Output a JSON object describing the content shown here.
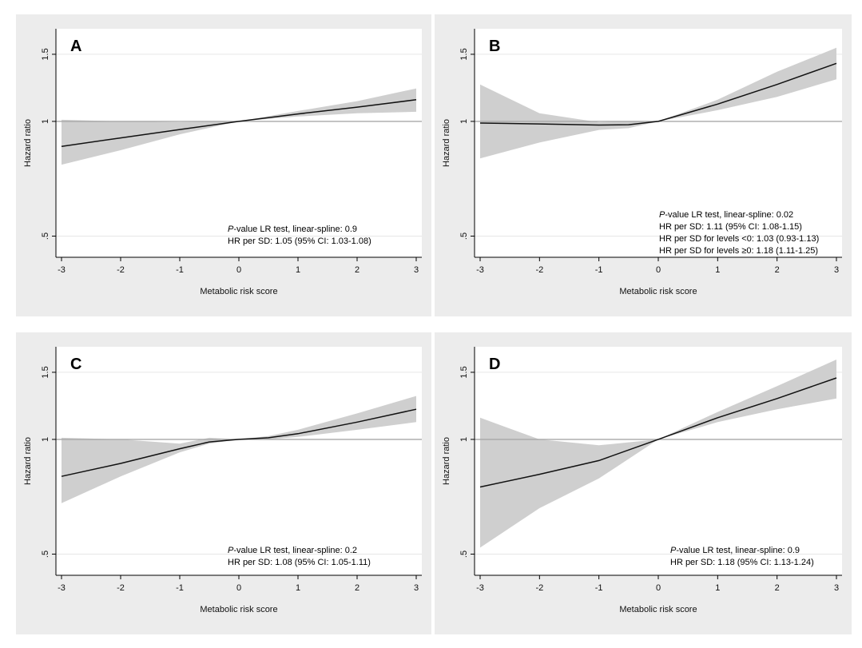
{
  "chart_data": [
    {
      "type": "line",
      "panel_label": "A",
      "xlabel": "Metabolic risk score",
      "ylabel": "Hazard ratio",
      "xlim": [
        -3,
        3
      ],
      "ylim_log": [
        0.44,
        1.75
      ],
      "x_ticks": [
        "-3",
        "-2",
        "-1",
        "0",
        "1",
        "2",
        "3"
      ],
      "y_ticks": [
        {
          "value": 0.5,
          "label": ".5"
        },
        {
          "value": 1,
          "label": "1"
        },
        {
          "value": 1.5,
          "label": "1.5"
        }
      ],
      "reference_line": 1,
      "grid": true,
      "x": [
        -3,
        -2,
        -1,
        0,
        1,
        2,
        3
      ],
      "hr": [
        0.86,
        0.905,
        0.952,
        1.0,
        1.046,
        1.09,
        1.14
      ],
      "ci_low": [
        0.77,
        0.84,
        0.925,
        1.0,
        1.03,
        1.05,
        1.06
      ],
      "ci_high": [
        1.01,
        1.0,
        0.995,
        1.0,
        1.065,
        1.13,
        1.22
      ],
      "annotations": [
        {
          "italic": "P",
          "text": "-value  LR test, linear-spline:  0.9"
        },
        {
          "italic": "",
          "text": "HR per SD: 1.05 (95% CI: 1.03-1.08)"
        }
      ]
    },
    {
      "type": "line",
      "panel_label": "B",
      "xlabel": "Metabolic risk score",
      "ylabel": "Hazard ratio",
      "xlim": [
        -3,
        3
      ],
      "ylim_log": [
        0.44,
        1.75
      ],
      "x_ticks": [
        "-3",
        "-2",
        "-1",
        "0",
        "1",
        "2",
        "3"
      ],
      "y_ticks": [
        {
          "value": 0.5,
          "label": ".5"
        },
        {
          "value": 1,
          "label": "1"
        },
        {
          "value": 1.5,
          "label": "1.5"
        }
      ],
      "reference_line": 1,
      "grid": true,
      "x": [
        -3,
        -2,
        -1,
        -0.5,
        0,
        1,
        2,
        3
      ],
      "hr": [
        0.99,
        0.985,
        0.978,
        0.98,
        1.0,
        1.11,
        1.25,
        1.42
      ],
      "ci_low": [
        0.8,
        0.88,
        0.95,
        0.96,
        1.0,
        1.07,
        1.16,
        1.29
      ],
      "ci_high": [
        1.25,
        1.05,
        0.995,
        1.0,
        1.0,
        1.14,
        1.35,
        1.56
      ],
      "annotations": [
        {
          "italic": "P",
          "text": "-value  LR test, linear-spline:  0.02"
        },
        {
          "italic": "",
          "text": "HR per SD: 1.11 (95% CI: 1.08-1.15)"
        },
        {
          "italic": "",
          "text": "HR per SD for levels <0: 1.03 (0.93-1.13)"
        },
        {
          "italic": "",
          "text": "HR per SD for levels ≥0: 1.18 (1.11-1.25)"
        }
      ]
    },
    {
      "type": "line",
      "panel_label": "C",
      "xlabel": "Metabolic risk score",
      "ylabel": "Hazard ratio",
      "xlim": [
        -3,
        3
      ],
      "ylim_log": [
        0.44,
        1.75
      ],
      "x_ticks": [
        "-3",
        "-2",
        "-1",
        "0",
        "1",
        "2",
        "3"
      ],
      "y_ticks": [
        {
          "value": 0.5,
          "label": ".5"
        },
        {
          "value": 1,
          "label": "1"
        },
        {
          "value": 1.5,
          "label": "1.5"
        }
      ],
      "reference_line": 1,
      "grid": true,
      "x": [
        -3,
        -2,
        -1,
        -0.5,
        0,
        0.5,
        1,
        2,
        3
      ],
      "hr": [
        0.8,
        0.865,
        0.945,
        0.985,
        1.0,
        1.01,
        1.035,
        1.11,
        1.2
      ],
      "ci_low": [
        0.68,
        0.8,
        0.925,
        0.975,
        1.0,
        1.0,
        1.015,
        1.06,
        1.11
      ],
      "ci_high": [
        1.01,
        1.0,
        0.975,
        1.01,
        1.0,
        1.02,
        1.06,
        1.17,
        1.3
      ],
      "annotations": [
        {
          "italic": "P",
          "text": "-value  LR test, linear-spline:  0.2"
        },
        {
          "italic": "",
          "text": "HR per SD: 1.08 (95% CI: 1.05-1.11)"
        }
      ]
    },
    {
      "type": "line",
      "panel_label": "D",
      "xlabel": "Metabolic risk score",
      "ylabel": "Hazard ratio",
      "xlim": [
        -3,
        3
      ],
      "ylim_log": [
        0.44,
        1.75
      ],
      "x_ticks": [
        "-3",
        "-2",
        "-1",
        "0",
        "1",
        "2",
        "3"
      ],
      "y_ticks": [
        {
          "value": 0.5,
          "label": ".5"
        },
        {
          "value": 1,
          "label": "1"
        },
        {
          "value": 1.5,
          "label": "1.5"
        }
      ],
      "reference_line": 1,
      "grid": true,
      "x": [
        -3,
        -2,
        -1,
        0,
        1,
        2,
        3
      ],
      "hr": [
        0.75,
        0.81,
        0.88,
        1.0,
        1.14,
        1.28,
        1.45
      ],
      "ci_low": [
        0.52,
        0.66,
        0.79,
        1.0,
        1.11,
        1.2,
        1.28
      ],
      "ci_high": [
        1.14,
        1.0,
        0.965,
        1.0,
        1.18,
        1.38,
        1.62
      ],
      "annotations": [
        {
          "italic": "P",
          "text": "-value  LR test, linear-spline:  0.9"
        },
        {
          "italic": "",
          "text": "HR per SD: 1.18 (95% CI: 1.13-1.24)"
        }
      ]
    }
  ]
}
